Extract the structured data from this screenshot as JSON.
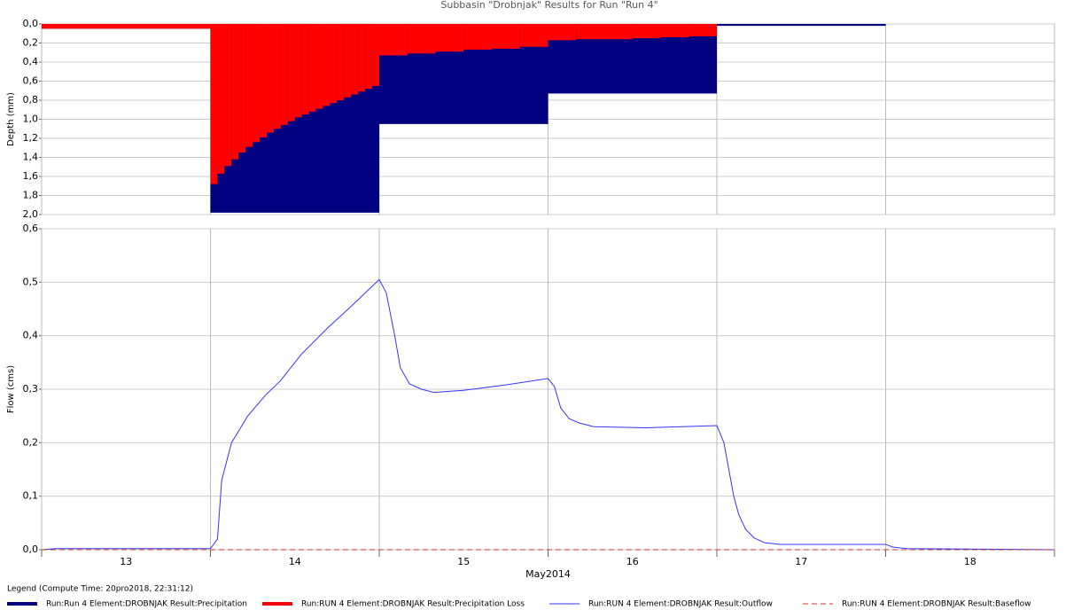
{
  "legend_title": "Legend (Compute Time: 20pro2018, 22:31:12)",
  "chart_data": [
    {
      "type": "bar",
      "title": "Subbasin \"Drobnjak\" Results for Run \"Run 4\"",
      "y_label": "Depth (mm)",
      "y_inverted": true,
      "ylim": [
        0,
        2
      ],
      "yticks": [
        {
          "value": 0,
          "label": "0,0"
        },
        {
          "value": 0.2,
          "label": "0,2"
        },
        {
          "value": 0.4,
          "label": "0,4"
        },
        {
          "value": 0.6,
          "label": "0,6"
        },
        {
          "value": 0.8,
          "label": "0,8"
        },
        {
          "value": 1.0,
          "label": "1,0"
        },
        {
          "value": 1.2,
          "label": "1,2"
        },
        {
          "value": 1.4,
          "label": "1,4"
        },
        {
          "value": 1.6,
          "label": "1,6"
        },
        {
          "value": 1.8,
          "label": "1,8"
        },
        {
          "value": 2.0,
          "label": "2,0"
        }
      ],
      "xlim": [
        0,
        144
      ],
      "xticks": [
        0,
        24,
        48,
        72,
        96,
        120,
        144
      ],
      "grid": true,
      "series": [
        {
          "name": "Run:Run 4 Element:DROBNJAK Result:Precipitation",
          "color": "#000080",
          "bins": [
            0,
            24,
            48,
            72,
            96,
            120,
            144
          ],
          "values": [
            0.05,
            1.98,
            1.05,
            0.73,
            0.02,
            0
          ]
        },
        {
          "name": "Run:RUN 4 Element:DROBNJAK Result:Precipitation Loss",
          "color": "#ff0000",
          "bins": [
            0,
            24,
            25,
            26,
            27,
            28,
            29,
            30,
            31,
            32,
            33,
            34,
            35,
            36,
            37,
            38,
            39,
            40,
            41,
            42,
            43,
            44,
            45,
            46,
            47,
            48,
            52,
            56,
            60,
            64,
            68,
            72,
            76,
            80,
            84,
            88,
            92,
            96
          ],
          "values": [
            0.05,
            1.68,
            1.57,
            1.49,
            1.42,
            1.35,
            1.29,
            1.24,
            1.19,
            1.14,
            1.1,
            1.06,
            1.02,
            0.98,
            0.95,
            0.92,
            0.89,
            0.86,
            0.83,
            0.8,
            0.77,
            0.74,
            0.71,
            0.68,
            0.65,
            0.33,
            0.31,
            0.29,
            0.27,
            0.26,
            0.24,
            0.17,
            0.16,
            0.16,
            0.15,
            0.14,
            0.13
          ]
        }
      ]
    },
    {
      "type": "line",
      "y_label": "Flow (cms)",
      "x_label": "May2014",
      "ylim": [
        0,
        0.6
      ],
      "yticks": [
        {
          "value": 0,
          "label": "0,0"
        },
        {
          "value": 0.1,
          "label": "0,1"
        },
        {
          "value": 0.2,
          "label": "0,2"
        },
        {
          "value": 0.3,
          "label": "0,3"
        },
        {
          "value": 0.4,
          "label": "0,4"
        },
        {
          "value": 0.5,
          "label": "0,5"
        },
        {
          "value": 0.6,
          "label": "0,6"
        }
      ],
      "xlim": [
        0,
        144
      ],
      "xticks": [
        0,
        24,
        48,
        72,
        96,
        120,
        144
      ],
      "day_labels": [
        "13",
        "14",
        "15",
        "16",
        "17",
        "18"
      ],
      "grid": true,
      "series": [
        {
          "name": "Run:RUN 4 Element:DROBNJAK Result:Outflow",
          "color": "#3333ff",
          "dashed": false,
          "x": [
            0,
            2,
            24,
            25,
            25.6,
            27,
            29.3,
            31.9,
            33.9,
            36.9,
            40.7,
            44,
            48,
            49,
            50.2,
            51,
            52.3,
            54,
            55.8,
            60,
            66,
            72,
            72.9,
            73.8,
            75,
            76.4,
            78.5,
            86,
            96,
            97,
            98.4,
            99.1,
            100.1,
            101.3,
            102.8,
            105,
            120,
            121,
            123,
            144
          ],
          "values": [
            0,
            0.002,
            0.002,
            0.02,
            0.13,
            0.2,
            0.25,
            0.29,
            0.315,
            0.365,
            0.415,
            0.455,
            0.505,
            0.48,
            0.4,
            0.34,
            0.31,
            0.3,
            0.294,
            0.298,
            0.308,
            0.32,
            0.305,
            0.265,
            0.245,
            0.237,
            0.23,
            0.228,
            0.232,
            0.2,
            0.1,
            0.066,
            0.038,
            0.022,
            0.013,
            0.01,
            0.01,
            0.005,
            0.002,
            0
          ]
        },
        {
          "name": "Run:RUN 4 Element:DROBNJAK Result:Baseflow",
          "color": "#cc3333",
          "dashed": true,
          "x": [
            0,
            144
          ],
          "values": [
            0,
            0
          ]
        }
      ]
    }
  ]
}
